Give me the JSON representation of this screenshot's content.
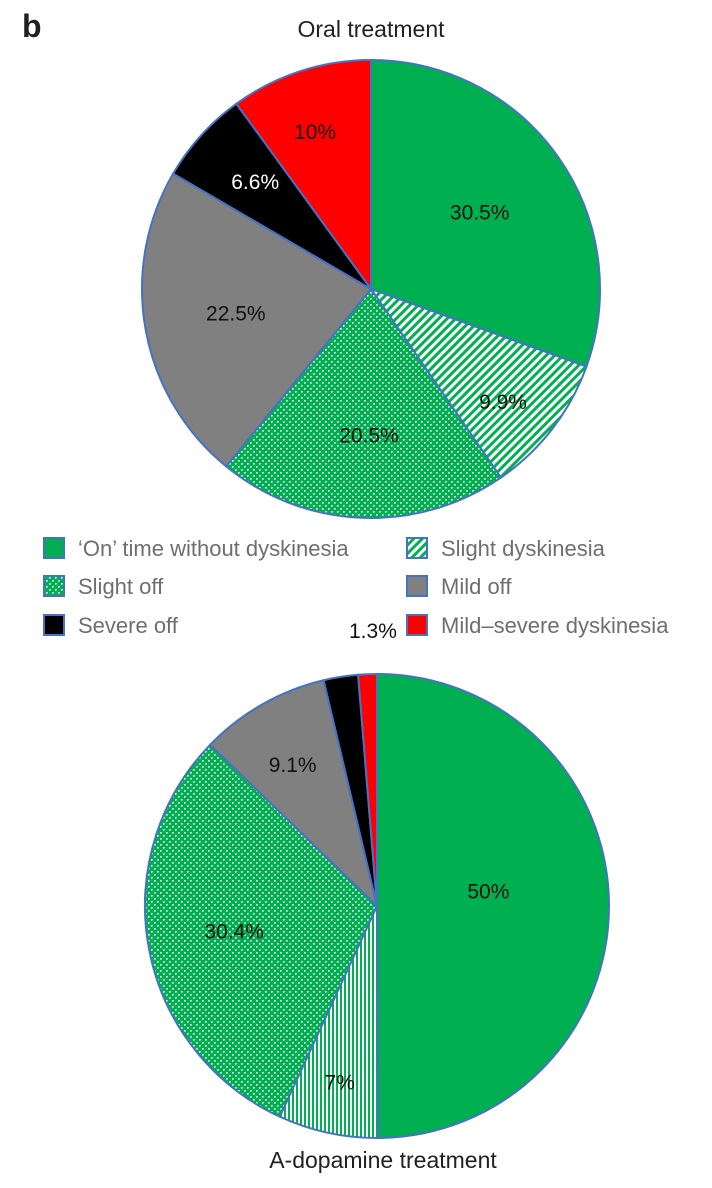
{
  "panel_letter": "b",
  "colors": {
    "on_green": "#00b050",
    "pattern_green": "#00b050",
    "mild_off_gray": "#808080",
    "severe_off_black": "#000000",
    "mild_severe_red": "#ff0000",
    "border_blue": "#4472c4"
  },
  "chart_data": [
    {
      "type": "pie",
      "title": "Oral treatment",
      "start_angle": "12 o'clock, clockwise",
      "slices": [
        {
          "label": "'On' time without dyskinesia",
          "value": 30.5,
          "display": "30.5%",
          "fill": "solid-green"
        },
        {
          "label": "Slight dyskinesia",
          "value": 9.9,
          "display": "9.9%",
          "fill": "green-diagonal-stripes"
        },
        {
          "label": "Slight off",
          "value": 20.5,
          "display": "20.5%",
          "fill": "green-dots"
        },
        {
          "label": "Mild off",
          "value": 22.5,
          "display": "22.5%",
          "fill": "solid-gray"
        },
        {
          "label": "Severe off",
          "value": 6.6,
          "display": "6.6%",
          "fill": "solid-black"
        },
        {
          "label": "Mild–severe dyskinesia",
          "value": 10,
          "display": "10%",
          "fill": "solid-red"
        }
      ]
    },
    {
      "type": "pie",
      "title": "A-dopamine treatment",
      "start_angle": "12 o'clock, clockwise",
      "slices": [
        {
          "label": "'On' time without dyskinesia",
          "value": 50,
          "display": "50%",
          "fill": "solid-green"
        },
        {
          "label": "Slight dyskinesia",
          "value": 7,
          "display": "7%",
          "fill": "green-vertical-stripes"
        },
        {
          "label": "Slight off",
          "value": 30.4,
          "display": "30.4%",
          "fill": "green-dots"
        },
        {
          "label": "Mild off",
          "value": 9.1,
          "display": "9.1%",
          "fill": "solid-gray"
        },
        {
          "label": "Severe off",
          "value": 2.4,
          "display": "2.4%",
          "fill": "solid-black"
        },
        {
          "label": "Mild–severe dyskinesia",
          "value": 1.3,
          "display": "1.3%",
          "fill": "solid-red"
        }
      ]
    }
  ],
  "legend": {
    "placement": "between charts, two columns",
    "items": [
      {
        "label": "‘On’ time without dyskinesia",
        "fill": "solid-green"
      },
      {
        "label": "Slight dyskinesia",
        "fill": "green-diagonal-stripes"
      },
      {
        "label": "Slight off",
        "fill": "green-dots"
      },
      {
        "label": "Mild off",
        "fill": "solid-gray"
      },
      {
        "label": "Severe off",
        "fill": "solid-black"
      },
      {
        "label": "Mild–severe dyskinesia",
        "fill": "solid-red"
      }
    ]
  }
}
